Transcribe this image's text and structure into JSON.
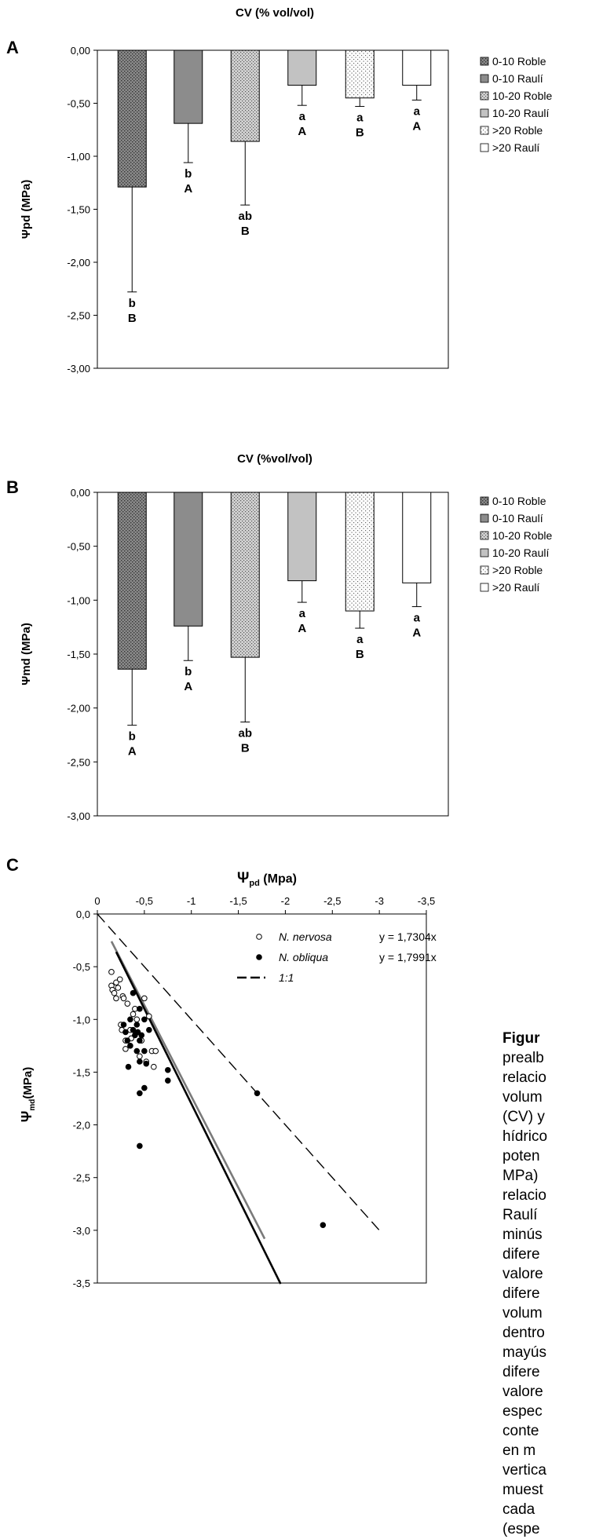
{
  "chart_data": [
    {
      "type": "bar",
      "panel_letter": "A",
      "title": "CV (% vol/vol)",
      "ylabel": "Ψpd (MPa)",
      "ylim": [
        -3.0,
        0.0
      ],
      "yticks": [
        "0,00",
        "-0,50",
        "-1,00",
        "-1,50",
        "-2,00",
        "-2,50",
        "-3,00"
      ],
      "categories": [
        "0-10 Roble",
        "0-10 Raulí",
        "10-20 Roble",
        "10-20 Raulí",
        ">20 Roble",
        ">20 Raulí"
      ],
      "values": [
        -1.29,
        -0.69,
        -0.86,
        -0.33,
        -0.45,
        -0.33
      ],
      "errors": [
        0.99,
        0.37,
        0.6,
        0.19,
        0.08,
        0.14
      ],
      "letters_lower": [
        "b",
        "b",
        "ab",
        "a",
        "a",
        "a"
      ],
      "letters_upper": [
        "B",
        "A",
        "B",
        "A",
        "B",
        "A"
      ],
      "legend": [
        "0-10 Roble",
        "0-10 Raulí",
        "10-20 Roble",
        "10-20 Raulí",
        ">20 Roble",
        ">20 Raulí"
      ],
      "legend_position": "right",
      "colors": [
        "#6f6f6f",
        "#8c8c8c",
        "#c4c4c4",
        "#bdbdbd",
        "#efefef",
        "#ffffff"
      ]
    },
    {
      "type": "bar",
      "panel_letter": "B",
      "title": "CV (%vol/vol)",
      "ylabel": "Ψmd (MPa)",
      "ylim": [
        -3.0,
        0.0
      ],
      "yticks": [
        "0,00",
        "-0,50",
        "-1,00",
        "-1,50",
        "-2,00",
        "-2,50",
        "-3,00"
      ],
      "categories": [
        "0-10 Roble",
        "0-10 Raulí",
        "10-20 Roble",
        "10-20 Raulí",
        ">20 Roble",
        ">20 Raulí"
      ],
      "values": [
        -1.64,
        -1.24,
        -1.53,
        -0.82,
        -1.1,
        -0.84
      ],
      "errors": [
        0.52,
        0.32,
        0.6,
        0.2,
        0.16,
        0.22
      ],
      "letters_lower": [
        "b",
        "b",
        "ab",
        "a",
        "a",
        "a"
      ],
      "letters_upper": [
        "A",
        "A",
        "B",
        "A",
        "B",
        "A"
      ],
      "legend": [
        "0-10 Roble",
        "0-10 Raulí",
        "10-20 Roble",
        "10-20 Raulí",
        ">20 Roble",
        ">20 Raulí"
      ],
      "legend_position": "right",
      "colors": [
        "#6f6f6f",
        "#8c8c8c",
        "#c4c4c4",
        "#bdbdbd",
        "#efefef",
        "#ffffff"
      ]
    },
    {
      "type": "scatter",
      "panel_letter": "C",
      "xlabel_main": "Ψ",
      "xlabel_sub": "pd",
      "xlabel_unit": " (Mpa)",
      "ylabel_main": "Ψ",
      "ylabel_sub": "md",
      "ylabel_unit": "(MPa)",
      "xlim": [
        0,
        -3.5
      ],
      "ylim": [
        0,
        -3.5
      ],
      "xticks": [
        "0",
        "-0,5",
        "-1",
        "-1,5",
        "-2",
        "-2,5",
        "-3",
        "-3,5"
      ],
      "yticks": [
        "0,0",
        "-0,5",
        "-1,0",
        "-1,5",
        "-2,0",
        "-2,5",
        "-3,0",
        "-3,5"
      ],
      "series": [
        {
          "name": "N. nervosa",
          "equation": "y = 1,7304x",
          "marker": "open-circle",
          "slope": 1.7304,
          "line_color": "#7a7a7a",
          "line_xrange": [
            -0.15,
            -1.78
          ],
          "points": [
            [
              -0.15,
              -0.55
            ],
            [
              -0.15,
              -0.68
            ],
            [
              -0.16,
              -0.72
            ],
            [
              -0.18,
              -0.75
            ],
            [
              -0.2,
              -0.65
            ],
            [
              -0.2,
              -0.8
            ],
            [
              -0.22,
              -0.7
            ],
            [
              -0.24,
              -0.62
            ],
            [
              -0.25,
              -1.05
            ],
            [
              -0.26,
              -1.1
            ],
            [
              -0.27,
              -0.78
            ],
            [
              -0.28,
              -0.8
            ],
            [
              -0.3,
              -1.2
            ],
            [
              -0.3,
              -1.28
            ],
            [
              -0.32,
              -0.85
            ],
            [
              -0.35,
              -1.1
            ],
            [
              -0.36,
              -1.18
            ],
            [
              -0.38,
              -0.95
            ],
            [
              -0.4,
              -0.9
            ],
            [
              -0.42,
              -1.0
            ],
            [
              -0.45,
              -1.35
            ],
            [
              -0.47,
              -1.2
            ],
            [
              -0.5,
              -0.8
            ],
            [
              -0.52,
              -1.4
            ],
            [
              -0.55,
              -0.97
            ],
            [
              -0.58,
              -1.3
            ],
            [
              -0.6,
              -1.45
            ],
            [
              -0.62,
              -1.3
            ]
          ]
        },
        {
          "name": "N. obliqua",
          "equation": "y = 1,7991x",
          "marker": "filled-circle",
          "slope": 1.7991,
          "line_color": "#000000",
          "line_xrange": [
            -0.2,
            -1.95
          ],
          "points": [
            [
              -0.28,
              -1.05
            ],
            [
              -0.3,
              -1.12
            ],
            [
              -0.32,
              -1.2
            ],
            [
              -0.33,
              -1.45
            ],
            [
              -0.35,
              -1.0
            ],
            [
              -0.35,
              -1.25
            ],
            [
              -0.38,
              -0.75
            ],
            [
              -0.38,
              -1.1
            ],
            [
              -0.4,
              -1.15
            ],
            [
              -0.42,
              -1.05
            ],
            [
              -0.42,
              -1.3
            ],
            [
              -0.43,
              -1.12
            ],
            [
              -0.45,
              -0.9
            ],
            [
              -0.45,
              -1.2
            ],
            [
              -0.45,
              -1.4
            ],
            [
              -0.45,
              -1.7
            ],
            [
              -0.45,
              -2.2
            ],
            [
              -0.47,
              -1.15
            ],
            [
              -0.5,
              -1.0
            ],
            [
              -0.5,
              -1.3
            ],
            [
              -0.5,
              -1.65
            ],
            [
              -0.52,
              -1.42
            ],
            [
              -0.55,
              -1.1
            ],
            [
              -0.75,
              -1.48
            ],
            [
              -0.75,
              -1.58
            ],
            [
              -1.7,
              -1.7
            ],
            [
              -2.4,
              -2.95
            ]
          ]
        }
      ],
      "reference_line": {
        "name": "1:1",
        "style": "dashed"
      },
      "legend_position": "top-right"
    }
  ],
  "caption_lines": [
    "Figur",
    "prealb",
    "relacio",
    "volum",
    "(CV) y",
    "hídrico",
    "poten",
    "MPa)",
    "relacio",
    "Raulí",
    "minús",
    "difere",
    "valore",
    "difere",
    "volum",
    "dentro",
    "mayús",
    "difere",
    "valore",
    "espec",
    "conte",
    "en m",
    "vertica",
    "muest",
    "cada",
    "(espe"
  ]
}
